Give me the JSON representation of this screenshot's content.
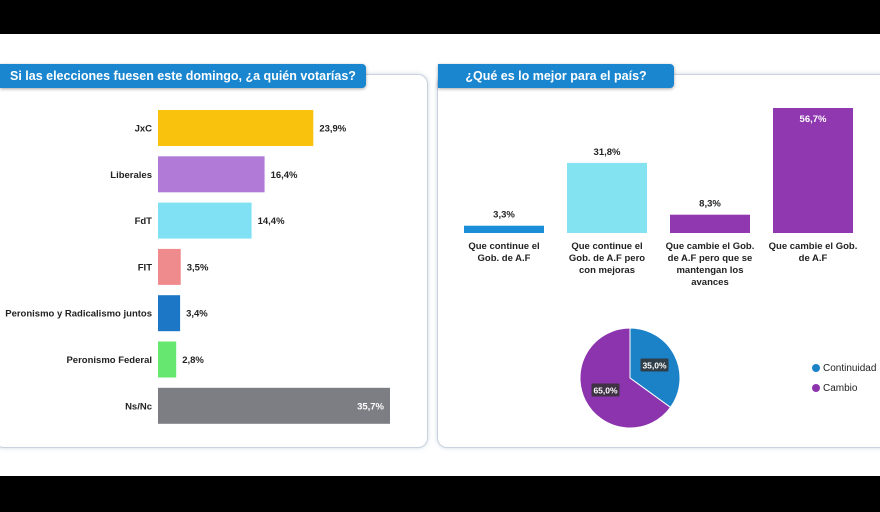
{
  "left_panel": {
    "title": "Si las elecciones fuesen este domingo, ¿a quién votarías?"
  },
  "right_panel": {
    "title": "¿Qué es lo mejor para el país?"
  },
  "chart_data": [
    {
      "type": "bar",
      "orientation": "horizontal",
      "title": "Si las elecciones fuesen este domingo, ¿a quién votarías?",
      "categories": [
        "JxC",
        "Liberales",
        "FdT",
        "FIT",
        "Peronismo y Radicalismo juntos",
        "Peronismo Federal",
        "Ns/Nc"
      ],
      "values": [
        23.9,
        16.4,
        14.4,
        3.5,
        3.4,
        2.8,
        35.7
      ],
      "labels": [
        "23,9%",
        "16,4%",
        "14,4%",
        "3,5%",
        "3,4%",
        "2,8%",
        "35,7%"
      ],
      "colors": [
        "#f9c20c",
        "#b07ad6",
        "#7fe1f3",
        "#f08b8d",
        "#1c77c7",
        "#66e870",
        "#7d7d84"
      ]
    },
    {
      "type": "bar",
      "title": "¿Qué es lo mejor para el país?",
      "categories": [
        "Que continue el Gob. de A.F",
        "Que continue el Gob. de A.F pero con mejoras",
        "Que cambie el Gob. de A.F pero que se mantengan los avances",
        "Que cambie el Gob. de A.F"
      ],
      "values": [
        3.3,
        31.8,
        8.3,
        56.7
      ],
      "labels": [
        "3,3%",
        "31,8%",
        "8,3%",
        "56,7%"
      ],
      "colors": [
        "#1a8fd8",
        "#84e3f1",
        "#8f38b0",
        "#8f38b0"
      ]
    },
    {
      "type": "pie",
      "slices": [
        {
          "name": "Continuidad",
          "value": 35.0,
          "label": "35,0%",
          "color": "#1c82c8"
        },
        {
          "name": "Cambio",
          "value": 65.0,
          "label": "65,0%",
          "color": "#8b34ad"
        }
      ],
      "legend_position": "right"
    }
  ]
}
